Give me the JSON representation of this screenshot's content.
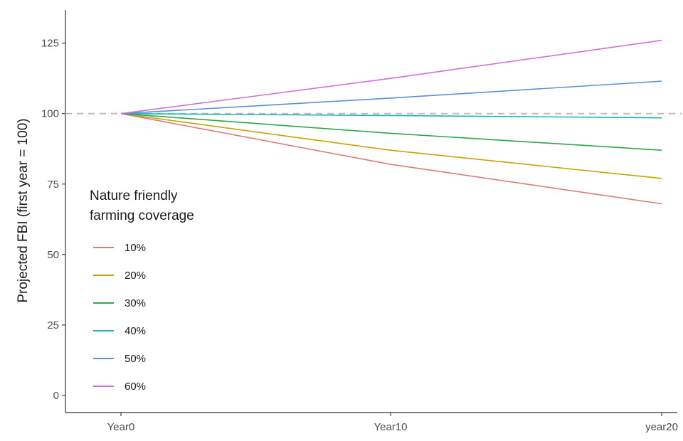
{
  "chart_data": {
    "type": "line",
    "x": [
      "Year0",
      "Year10",
      "year20"
    ],
    "ylabel": "Projected FBI (first year = 100)",
    "xlabel": "",
    "ylim": [
      0,
      135
    ],
    "yticks": [
      0,
      25,
      50,
      75,
      100,
      125
    ],
    "reference_line": {
      "y": 100,
      "style": "dashed",
      "color": "#bdbdbd"
    },
    "grid": false,
    "legend": {
      "title_lines": [
        "Nature friendly",
        "farming coverage"
      ],
      "placement": "bottom-left inside"
    },
    "series": [
      {
        "name": "10%",
        "color": "#e07a7a",
        "values": [
          100,
          82,
          68
        ]
      },
      {
        "name": "20%",
        "color": "#c9a100",
        "values": [
          100,
          87,
          77
        ]
      },
      {
        "name": "30%",
        "color": "#2aa84a",
        "values": [
          100,
          93,
          87
        ]
      },
      {
        "name": "40%",
        "color": "#19b5b5",
        "values": [
          100,
          99.3,
          98.5
        ]
      },
      {
        "name": "50%",
        "color": "#5b8fd6",
        "values": [
          100,
          105.5,
          111.5
        ]
      },
      {
        "name": "60%",
        "color": "#d070d9",
        "values": [
          100,
          112.5,
          126
        ]
      }
    ]
  }
}
